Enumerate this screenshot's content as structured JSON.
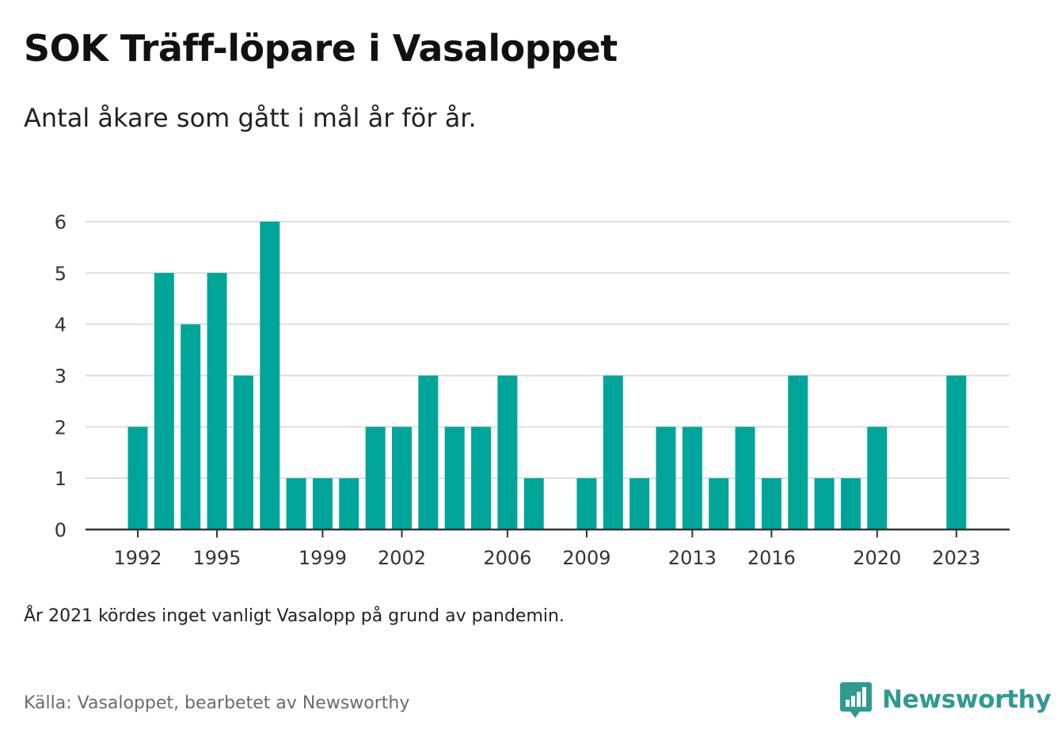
{
  "title": "SOK Träff-löpare i Vasaloppet",
  "subtitle": "Antal åkare som gått i mål år för år.",
  "note": "År 2021 kördes inget vanligt Vasalopp på grund av pandemin.",
  "source": "Källa: Vasaloppet, bearbetet av Newsworthy",
  "logo": {
    "name": "Newsworthy",
    "icon": "newsworthy-logo-icon",
    "color": "#2f9a8f"
  },
  "colors": {
    "bar": "#00a59a",
    "grid": "#dedede",
    "axis": "#333333"
  },
  "chart_data": {
    "type": "bar",
    "x": [
      1992,
      1993,
      1994,
      1995,
      1996,
      1997,
      1998,
      1999,
      2000,
      2001,
      2002,
      2003,
      2004,
      2005,
      2006,
      2007,
      2008,
      2009,
      2010,
      2011,
      2012,
      2013,
      2014,
      2015,
      2016,
      2017,
      2018,
      2019,
      2020,
      2021,
      2022,
      2023
    ],
    "values": [
      2,
      5,
      4,
      5,
      3,
      6,
      1,
      1,
      1,
      2,
      2,
      3,
      2,
      2,
      3,
      1,
      0,
      1,
      3,
      1,
      2,
      2,
      1,
      2,
      1,
      3,
      1,
      1,
      2,
      0,
      0,
      3
    ],
    "xticks": [
      1992,
      1995,
      1999,
      2002,
      2006,
      2009,
      2013,
      2016,
      2020,
      2023
    ],
    "yticks": [
      0,
      1,
      2,
      3,
      4,
      5,
      6
    ],
    "ylim": [
      0,
      6
    ],
    "xlabel": "",
    "ylabel": "",
    "grid": true,
    "legend": "none"
  }
}
